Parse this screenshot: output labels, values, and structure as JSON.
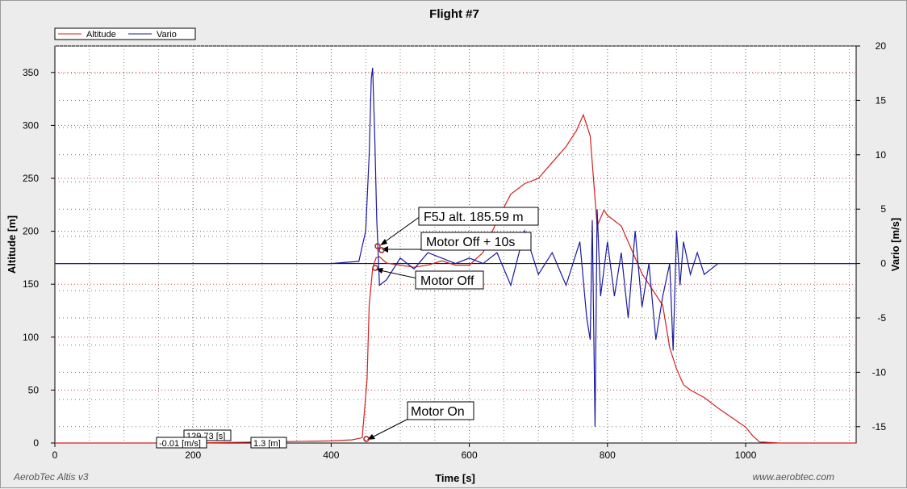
{
  "chart_data": {
    "type": "line",
    "title": "Flight #7",
    "xlabel": "Time [s]",
    "ylabel_left": "Altitude [m]",
    "ylabel_right": "Vario [m/s]",
    "xlim": [
      0,
      1160
    ],
    "ylim_left": [
      0,
      375
    ],
    "ylim_right": [
      -16.5,
      20
    ],
    "xticks": [
      0,
      200,
      400,
      600,
      800,
      1000
    ],
    "yticks_left": [
      0,
      50,
      100,
      150,
      200,
      250,
      300,
      350
    ],
    "yticks_right": [
      -15,
      -10,
      -5,
      0,
      5,
      10,
      15,
      20
    ],
    "grid": true,
    "legend_position": "top-left",
    "legend": [
      "Altitude",
      "Vario"
    ],
    "series": [
      {
        "name": "Altitude",
        "color": "#d42020",
        "axis": "left",
        "x": [
          0,
          100,
          200,
          300,
          400,
          430,
          445,
          452,
          455,
          460,
          465,
          470,
          480,
          500,
          520,
          540,
          560,
          580,
          600,
          620,
          640,
          660,
          680,
          700,
          720,
          740,
          755,
          765,
          775,
          785,
          795,
          800,
          820,
          850,
          880,
          890,
          900,
          910,
          920,
          940,
          960,
          980,
          1000,
          1010,
          1020,
          1050,
          1100,
          1160
        ],
        "values": [
          0,
          0,
          0,
          1,
          2,
          3,
          5,
          60,
          130,
          165,
          175,
          176,
          170,
          168,
          166,
          168,
          172,
          168,
          168,
          180,
          210,
          235,
          245,
          250,
          265,
          280,
          295,
          310,
          290,
          205,
          220,
          215,
          205,
          160,
          130,
          90,
          70,
          55,
          50,
          43,
          33,
          24,
          15,
          7,
          1,
          0,
          0,
          0
        ]
      },
      {
        "name": "Vario",
        "color": "#1a1aa0",
        "axis": "right",
        "x": [
          0,
          100,
          200,
          300,
          400,
          440,
          450,
          455,
          458,
          460,
          463,
          466,
          470,
          480,
          500,
          520,
          540,
          560,
          580,
          600,
          620,
          640,
          660,
          680,
          700,
          720,
          740,
          760,
          770,
          775,
          778,
          782,
          785,
          790,
          800,
          810,
          820,
          830,
          840,
          850,
          860,
          870,
          880,
          890,
          895,
          900,
          905,
          910,
          920,
          930,
          940,
          960,
          1000,
          1050,
          1100,
          1160
        ],
        "values": [
          0,
          0,
          0,
          0,
          0,
          0.2,
          3,
          10,
          17,
          18,
          12,
          4,
          -2,
          -1.5,
          0.5,
          -0.5,
          1,
          0.5,
          0,
          0.5,
          0,
          1,
          -2,
          3,
          -1,
          1,
          -2,
          2,
          -5,
          -7,
          4,
          -15,
          5,
          -3,
          2,
          -3,
          1,
          -5,
          3,
          -4,
          0,
          -7,
          -3,
          0,
          -8,
          3,
          -2,
          2,
          -1,
          1,
          -1,
          0,
          0,
          0,
          0,
          0
        ]
      }
    ],
    "annotations": [
      {
        "text": "F5J alt. 185.59 m"
      },
      {
        "text": "Motor Off + 10s"
      },
      {
        "text": "Motor Off"
      },
      {
        "text": "Motor On"
      }
    ],
    "cursor_labels": [
      "129.73 [s]",
      "-0.01 [m/s]",
      "1.3 [m]"
    ]
  },
  "footer": {
    "left": "AerobTec Altis v3",
    "right": "www.aerobtec.com"
  }
}
